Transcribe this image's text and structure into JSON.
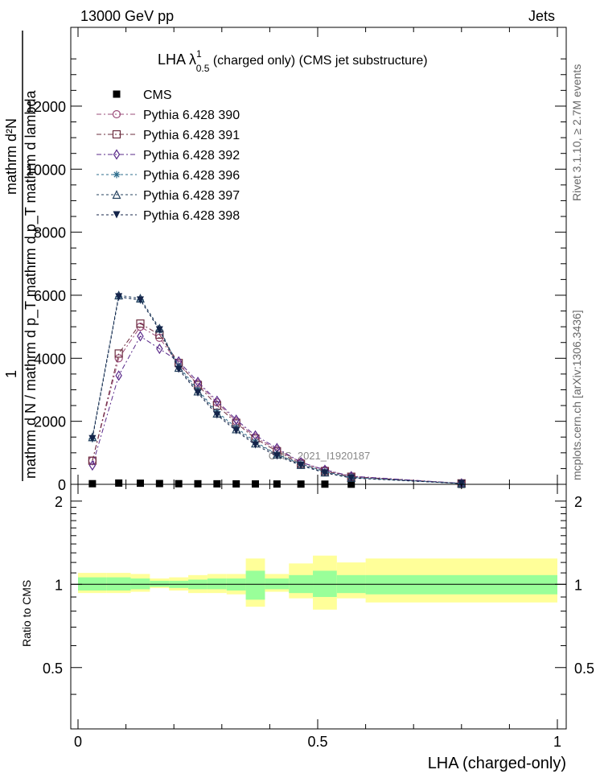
{
  "header": {
    "left": "13000 GeV pp",
    "right": "Jets",
    "side_right_top": "Rivet 3.1.10, ≥ 2.7M events",
    "side_right_bottom": "mcplots.cern.ch [arXiv:1306.3436]",
    "watermark": "CMS_2021_I1920187"
  },
  "chart_data": [
    {
      "type": "line",
      "title": "LHA λ",
      "title_sup": "1",
      "title_sub": "0.5",
      "title_suffix": " (charged only) (CMS jet substructure)",
      "ylabel_numerator": "1",
      "ylabel_denominator": "mathrm d N / mathrm d p_T mathrm d p_T mathrm d lambda",
      "ylabel_numerator_text": "mathrm d²N",
      "ylabel_lines": [
        "mathrm d²N",
        "1",
        "mathrm d N / mathrm d p_T mathrm d p_T mathrm d lambda"
      ],
      "xlim": [
        0,
        1
      ],
      "ylim": [
        0,
        14500
      ],
      "grid": false,
      "legend_position": "top-left",
      "y_ticks": [
        0,
        2000,
        4000,
        6000,
        8000,
        10000,
        12000
      ],
      "y_tick_labels": [
        "0",
        "2000",
        "4000",
        "6000",
        "8000",
        "10000",
        "12000"
      ],
      "x_bins": [
        0.03,
        0.085,
        0.13,
        0.17,
        0.21,
        0.25,
        0.29,
        0.33,
        0.37,
        0.415,
        0.465,
        0.515,
        0.57,
        0.8
      ],
      "series": [
        {
          "name": "CMS",
          "color": "#000000",
          "marker": "square-filled",
          "dash": "none",
          "values": [
            20,
            40,
            35,
            25,
            20,
            18,
            16,
            14,
            12,
            10,
            8,
            6,
            4,
            1
          ]
        },
        {
          "name": "Pythia 6.428 390",
          "color": "#9b4c7a",
          "marker": "circle-open",
          "dash": "6,3,2,3",
          "values": [
            750,
            4000,
            5000,
            4650,
            3800,
            3200,
            2600,
            2000,
            1500,
            1100,
            700,
            450,
            250,
            30
          ]
        },
        {
          "name": "Pythia 6.428 391",
          "color": "#6b2c3e",
          "marker": "square-open",
          "dash": "6,3,2,3",
          "values": [
            750,
            4150,
            5100,
            4750,
            3850,
            3150,
            2500,
            1950,
            1450,
            1050,
            650,
            420,
            240,
            30
          ]
        },
        {
          "name": "Pythia 6.428 392",
          "color": "#5a2a8a",
          "marker": "diamond-open",
          "dash": "6,3,2,3",
          "values": [
            600,
            3450,
            4700,
            4300,
            3900,
            3250,
            2650,
            2050,
            1550,
            1150,
            700,
            460,
            260,
            30
          ]
        },
        {
          "name": "Pythia 6.428 396",
          "color": "#2c6c8c",
          "marker": "star",
          "dash": "3,3",
          "values": [
            1450,
            5950,
            5850,
            4900,
            3750,
            3000,
            2300,
            1800,
            1350,
            950,
            650,
            400,
            220,
            25
          ]
        },
        {
          "name": "Pythia 6.428 397",
          "color": "#23405e",
          "marker": "triangle-open",
          "dash": "3,3",
          "values": [
            1500,
            6000,
            5900,
            4950,
            3700,
            2950,
            2250,
            1750,
            1300,
            950,
            620,
            380,
            210,
            25
          ]
        },
        {
          "name": "Pythia 6.428 398",
          "color": "#14244a",
          "marker": "triangle-down-filled",
          "dash": "3,3",
          "values": [
            1450,
            5950,
            5850,
            4900,
            3650,
            2900,
            2200,
            1700,
            1250,
            900,
            600,
            360,
            200,
            25
          ]
        }
      ]
    },
    {
      "type": "area",
      "ylabel": "Ratio to CMS",
      "xlabel": "LHA (charged-only)",
      "xlim": [
        0,
        1
      ],
      "ylim": [
        0.3,
        2.3
      ],
      "y_ticks": [
        0.5,
        1,
        2
      ],
      "y_tick_labels": [
        "0.5",
        "1",
        "2"
      ],
      "x_ticks": [
        0,
        0.5,
        1
      ],
      "x_tick_labels": [
        "0",
        "0.5",
        "1"
      ],
      "reference": 1,
      "bin_edges": [
        0,
        0.06,
        0.11,
        0.15,
        0.19,
        0.23,
        0.27,
        0.31,
        0.35,
        0.39,
        0.44,
        0.49,
        0.54,
        0.6,
        1.0
      ],
      "band_inner": [
        [
          0.95,
          1.06
        ],
        [
          0.95,
          1.06
        ],
        [
          0.96,
          1.05
        ],
        [
          0.98,
          1.03
        ],
        [
          0.97,
          1.03
        ],
        [
          0.96,
          1.04
        ],
        [
          0.96,
          1.05
        ],
        [
          0.95,
          1.05
        ],
        [
          0.88,
          1.12
        ],
        [
          0.96,
          1.05
        ],
        [
          0.93,
          1.08
        ],
        [
          0.9,
          1.12
        ],
        [
          0.93,
          1.08
        ],
        [
          0.92,
          1.08
        ]
      ],
      "band_outer": [
        [
          0.93,
          1.1
        ],
        [
          0.93,
          1.1
        ],
        [
          0.94,
          1.09
        ],
        [
          0.97,
          1.05
        ],
        [
          0.95,
          1.06
        ],
        [
          0.93,
          1.08
        ],
        [
          0.93,
          1.09
        ],
        [
          0.92,
          1.09
        ],
        [
          0.83,
          1.24
        ],
        [
          0.94,
          1.09
        ],
        [
          0.89,
          1.19
        ],
        [
          0.81,
          1.27
        ],
        [
          0.89,
          1.2
        ],
        [
          0.86,
          1.24
        ]
      ],
      "band_colors": {
        "inner": "#99ff99",
        "outer": "#ffff99"
      }
    }
  ]
}
